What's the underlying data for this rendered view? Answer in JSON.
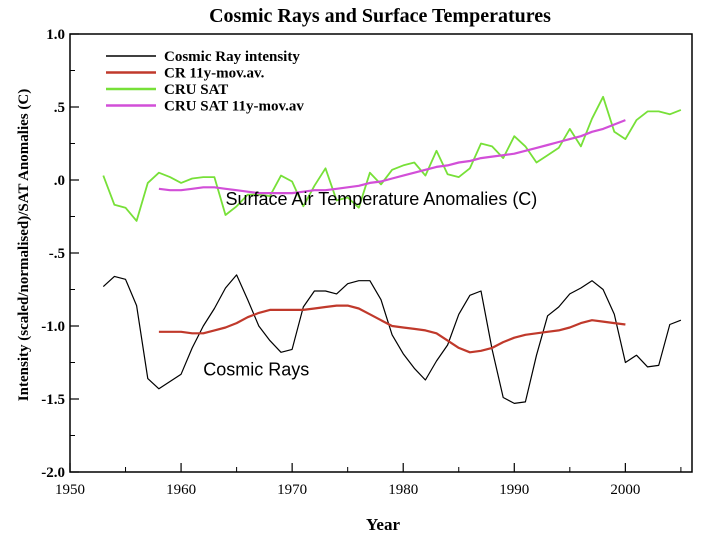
{
  "chart_data": {
    "type": "line",
    "title": "Cosmic Rays and Surface Temperatures",
    "xlabel": "Year",
    "ylabel": "Intensity (scaled/normalised)/SAT Anomalies (C)",
    "xlim": [
      1950,
      2006
    ],
    "ylim": [
      -2.0,
      1.0
    ],
    "x_ticks": [
      1950,
      1960,
      1970,
      1980,
      1990,
      2000
    ],
    "y_ticks": [
      1.0,
      0.5,
      0.0,
      -0.5,
      -1.0,
      -1.5,
      -2.0
    ],
    "y_tick_labels": [
      "1.0",
      ".5",
      ".0",
      "-.5",
      "-1.0",
      "-1.5",
      "-2.0"
    ],
    "grid": false,
    "legend_position": "top-left",
    "annotations": [
      {
        "text": "Surface Air Temperature Anomalies (C)",
        "x": 1964,
        "y": -0.17
      },
      {
        "text": "Cosmic Rays",
        "x": 1962,
        "y": -1.34
      }
    ],
    "series": [
      {
        "name": "Cosmic Ray intensity",
        "color": "#000000",
        "x": [
          1953,
          1954,
          1955,
          1956,
          1957,
          1958,
          1959,
          1960,
          1961,
          1962,
          1963,
          1964,
          1965,
          1966,
          1967,
          1968,
          1969,
          1970,
          1971,
          1972,
          1973,
          1974,
          1975,
          1976,
          1977,
          1978,
          1979,
          1980,
          1981,
          1982,
          1983,
          1984,
          1985,
          1986,
          1987,
          1988,
          1989,
          1990,
          1991,
          1992,
          1993,
          1994,
          1995,
          1996,
          1997,
          1998,
          1999,
          2000,
          2001,
          2002,
          2003,
          2004,
          2005
        ],
        "y": [
          -0.73,
          -0.66,
          -0.68,
          -0.86,
          -1.36,
          -1.43,
          -1.38,
          -1.33,
          -1.15,
          -1.0,
          -0.88,
          -0.74,
          -0.65,
          -0.82,
          -1.0,
          -1.1,
          -1.18,
          -1.16,
          -0.87,
          -0.76,
          -0.76,
          -0.78,
          -0.71,
          -0.69,
          -0.69,
          -0.82,
          -1.06,
          -1.19,
          -1.29,
          -1.37,
          -1.24,
          -1.13,
          -0.92,
          -0.79,
          -0.76,
          -1.16,
          -1.49,
          -1.53,
          -1.52,
          -1.2,
          -0.93,
          -0.87,
          -0.78,
          -0.74,
          -0.69,
          -0.75,
          -0.92,
          -1.25,
          -1.2,
          -1.28,
          -1.27,
          -0.99,
          -0.96
        ]
      },
      {
        "name": "CR 11y-mov.av.",
        "color": "#c0392b",
        "x": [
          1958,
          1959,
          1960,
          1961,
          1962,
          1963,
          1964,
          1965,
          1966,
          1967,
          1968,
          1969,
          1970,
          1971,
          1972,
          1973,
          1974,
          1975,
          1976,
          1977,
          1978,
          1979,
          1980,
          1981,
          1982,
          1983,
          1984,
          1985,
          1986,
          1987,
          1988,
          1989,
          1990,
          1991,
          1992,
          1993,
          1994,
          1995,
          1996,
          1997,
          1998,
          1999,
          2000
        ],
        "y": [
          -1.04,
          -1.04,
          -1.04,
          -1.05,
          -1.05,
          -1.03,
          -1.01,
          -0.98,
          -0.94,
          -0.91,
          -0.89,
          -0.89,
          -0.89,
          -0.89,
          -0.88,
          -0.87,
          -0.86,
          -0.86,
          -0.88,
          -0.92,
          -0.96,
          -1.0,
          -1.01,
          -1.02,
          -1.03,
          -1.05,
          -1.1,
          -1.15,
          -1.18,
          -1.17,
          -1.15,
          -1.11,
          -1.08,
          -1.06,
          -1.05,
          -1.04,
          -1.03,
          -1.01,
          -0.98,
          -0.96,
          -0.97,
          -0.98,
          -0.99
        ]
      },
      {
        "name": "CRU SAT",
        "color": "#77e038",
        "x": [
          1953,
          1954,
          1955,
          1956,
          1957,
          1958,
          1959,
          1960,
          1961,
          1962,
          1963,
          1964,
          1965,
          1966,
          1967,
          1968,
          1969,
          1970,
          1971,
          1972,
          1973,
          1974,
          1975,
          1976,
          1977,
          1978,
          1979,
          1980,
          1981,
          1982,
          1983,
          1984,
          1985,
          1986,
          1987,
          1988,
          1989,
          1990,
          1991,
          1992,
          1993,
          1994,
          1995,
          1996,
          1997,
          1998,
          1999,
          2000,
          2001,
          2002,
          2003,
          2004,
          2005
        ],
        "y": [
          0.03,
          -0.17,
          -0.19,
          -0.28,
          -0.02,
          0.05,
          0.02,
          -0.02,
          0.01,
          0.02,
          0.02,
          -0.24,
          -0.18,
          -0.1,
          -0.1,
          -0.11,
          0.03,
          -0.01,
          -0.18,
          -0.04,
          0.08,
          -0.14,
          -0.12,
          -0.19,
          0.05,
          -0.03,
          0.07,
          0.1,
          0.12,
          0.03,
          0.2,
          0.04,
          0.02,
          0.08,
          0.25,
          0.23,
          0.15,
          0.3,
          0.23,
          0.12,
          0.17,
          0.22,
          0.35,
          0.23,
          0.42,
          0.57,
          0.33,
          0.28,
          0.41,
          0.47,
          0.47,
          0.45,
          0.48
        ]
      },
      {
        "name": "CRU SAT 11y-mov.av",
        "color": "#d24fd8",
        "x": [
          1958,
          1959,
          1960,
          1961,
          1962,
          1963,
          1964,
          1965,
          1966,
          1967,
          1968,
          1969,
          1970,
          1971,
          1972,
          1973,
          1974,
          1975,
          1976,
          1977,
          1978,
          1979,
          1980,
          1981,
          1982,
          1983,
          1984,
          1985,
          1986,
          1987,
          1988,
          1989,
          1990,
          1991,
          1992,
          1993,
          1994,
          1995,
          1996,
          1997,
          1998,
          1999,
          2000
        ],
        "y": [
          -0.06,
          -0.07,
          -0.07,
          -0.06,
          -0.05,
          -0.05,
          -0.06,
          -0.07,
          -0.08,
          -0.09,
          -0.09,
          -0.09,
          -0.09,
          -0.08,
          -0.07,
          -0.07,
          -0.06,
          -0.05,
          -0.04,
          -0.02,
          -0.01,
          0.01,
          0.03,
          0.05,
          0.07,
          0.09,
          0.1,
          0.12,
          0.13,
          0.15,
          0.16,
          0.17,
          0.18,
          0.2,
          0.22,
          0.24,
          0.26,
          0.28,
          0.3,
          0.33,
          0.35,
          0.38,
          0.41
        ]
      }
    ]
  }
}
